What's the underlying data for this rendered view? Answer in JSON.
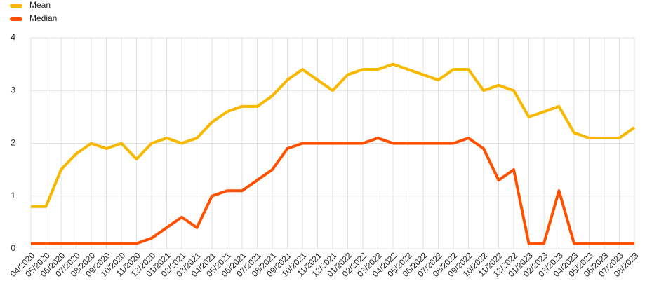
{
  "chart_data": {
    "type": "line",
    "categories": [
      "04/2020",
      "05/2020",
      "06/2020",
      "07/2020",
      "08/2020",
      "09/2020",
      "10/2020",
      "11/2020",
      "12/2020",
      "01/2021",
      "02/2021",
      "03/2021",
      "04/2021",
      "05/2021",
      "06/2021",
      "07/2021",
      "08/2021",
      "09/2021",
      "10/2021",
      "11/2021",
      "12/2021",
      "01/2022",
      "02/2022",
      "03/2022",
      "04/2022",
      "05/2022",
      "06/2022",
      "07/2022",
      "08/2022",
      "09/2022",
      "10/2022",
      "11/2022",
      "12/2022",
      "01/2023",
      "02/2023",
      "03/2023",
      "04/2023",
      "05/2023",
      "06/2023",
      "07/2023",
      "08/2023"
    ],
    "series": [
      {
        "name": "Mean",
        "color": "#f9b800",
        "values": [
          0.8,
          0.8,
          1.5,
          1.8,
          2.0,
          1.9,
          2.0,
          1.7,
          2.0,
          2.1,
          2.0,
          2.1,
          2.4,
          2.6,
          2.7,
          2.7,
          2.9,
          3.2,
          3.4,
          3.2,
          3.0,
          3.3,
          3.4,
          3.4,
          3.5,
          3.4,
          3.3,
          3.2,
          3.4,
          3.4,
          3.0,
          3.1,
          3.0,
          2.5,
          2.6,
          2.7,
          2.2,
          2.1,
          2.1,
          2.1,
          2.3
        ]
      },
      {
        "name": "Median",
        "color": "#ff5000",
        "values": [
          0.1,
          0.1,
          0.1,
          0.1,
          0.1,
          0.1,
          0.1,
          0.1,
          0.2,
          0.4,
          0.6,
          0.4,
          1.0,
          1.1,
          1.1,
          1.3,
          1.5,
          1.9,
          2.0,
          2.0,
          2.0,
          2.0,
          2.0,
          2.1,
          2.0,
          2.0,
          2.0,
          2.0,
          2.0,
          2.1,
          1.9,
          1.3,
          1.5,
          0.1,
          0.1,
          1.1,
          0.1,
          0.1,
          0.1,
          0.1,
          0.1
        ]
      }
    ],
    "ylim": [
      0,
      4
    ],
    "yticks": [
      0,
      1,
      2,
      3,
      4
    ],
    "grid": true,
    "legend": "top-left"
  }
}
